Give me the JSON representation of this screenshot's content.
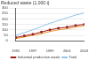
{
  "chart_data": {
    "type": "line",
    "title": "Reduced waste (1,000 t)",
    "categories": [
      "1995",
      null,
      "1997",
      null,
      "1999",
      null,
      "2001",
      null,
      "2003"
    ],
    "series": [
      {
        "name": "Industrial production waste",
        "color": "#9b1c1c",
        "marker": "square",
        "values": [
          30,
          45,
          60,
          80,
          100,
          115,
          125,
          140,
          150
        ]
      },
      {
        "name": "Total",
        "color": "#8fc3e8",
        "marker": "none",
        "values": [
          50,
          75,
          100,
          130,
          160,
          185,
          210,
          235,
          255
        ]
      },
      {
        "color": "#e8962a",
        "marker": "none",
        "values": [
          20,
          35,
          50,
          65,
          85,
          100,
          110,
          125,
          135
        ]
      }
    ],
    "ylim": [
      0,
      300
    ],
    "yticks": [
      0,
      50,
      100,
      150,
      200,
      250,
      300
    ],
    "grid": true,
    "legend": "bottom"
  }
}
